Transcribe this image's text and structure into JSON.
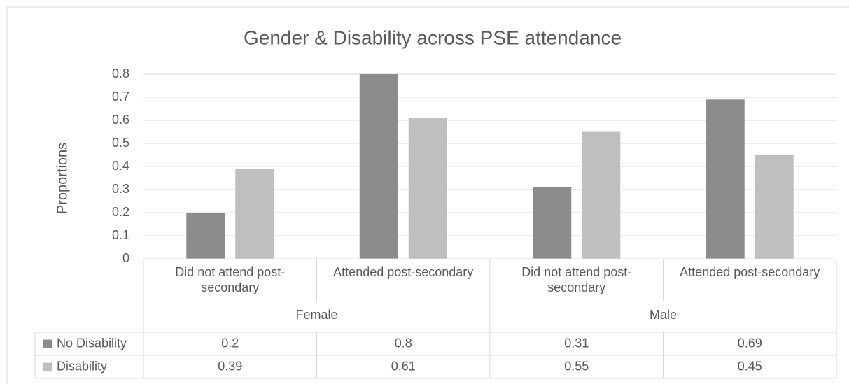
{
  "chart_data": {
    "type": "bar",
    "title": "Gender & Disability across PSE attendance",
    "y_label": "Proportions",
    "categories": [
      "Did not attend post-secondary",
      "Attended post-secondary",
      "Did not attend post-secondary",
      "Attended post-secondary"
    ],
    "groups": [
      "Female",
      "Male"
    ],
    "series": [
      {
        "name": "No Disability",
        "color": "#8c8c8c",
        "values": [
          0.2,
          0.8,
          0.31,
          0.69
        ]
      },
      {
        "name": "Disability",
        "color": "#bfbfbf",
        "values": [
          0.39,
          0.61,
          0.55,
          0.45
        ]
      }
    ],
    "ylim": [
      0,
      0.8
    ],
    "yticks": [
      0,
      0.1,
      0.2,
      0.3,
      0.4,
      0.5,
      0.6,
      0.7,
      0.8
    ],
    "grid": true,
    "data_table": true
  }
}
